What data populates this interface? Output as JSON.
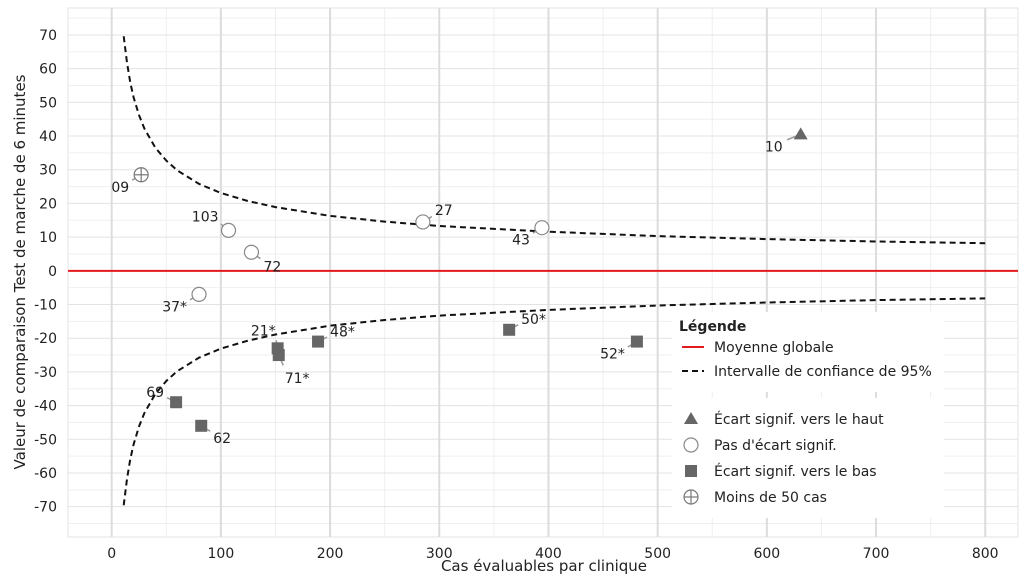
{
  "chart_data": {
    "type": "scatter",
    "xlabel": "Cas évaluables par clinique",
    "ylabel": "Valeur de comparaison Test de marche de 6 minutes",
    "xlim": [
      -40,
      830
    ],
    "ylim": [
      -79,
      78
    ],
    "xticks": [
      0,
      100,
      200,
      300,
      400,
      500,
      600,
      700,
      800
    ],
    "yticks": [
      70,
      60,
      50,
      40,
      30,
      20,
      10,
      0,
      -10,
      -20,
      -30,
      -40,
      -50,
      -60,
      -70
    ],
    "grid": true,
    "reference_line": {
      "y": 0,
      "label": "Moyenne globale",
      "color": "#e41a1c"
    },
    "confidence_band": {
      "label": "Intervalle de confiance de 95%",
      "x": [
        11,
        14,
        17,
        20,
        25,
        30,
        40,
        50,
        60,
        80,
        100,
        125,
        150,
        200,
        250,
        300,
        400,
        500,
        600,
        700,
        800
      ],
      "upper": [
        69.6,
        61.8,
        56.0,
        51.6,
        46.2,
        42.2,
        36.5,
        32.7,
        29.8,
        25.8,
        23.1,
        20.7,
        18.9,
        16.3,
        14.6,
        13.3,
        11.6,
        10.3,
        9.4,
        8.7,
        8.2
      ]
    },
    "series": [
      {
        "name": "Écart signif. vers le haut",
        "marker": "triangle",
        "color": "#666666",
        "points": [
          {
            "label": "10",
            "x": 631,
            "y": 40.5
          }
        ]
      },
      {
        "name": "Pas d'écart signif.",
        "marker": "circle-open",
        "color": "#888888",
        "points": [
          {
            "label": "103",
            "x": 107,
            "y": 12
          },
          {
            "label": "72",
            "x": 128,
            "y": 5.5
          },
          {
            "label": "27",
            "x": 285,
            "y": 14.5
          },
          {
            "label": "43",
            "x": 394,
            "y": 12.8
          },
          {
            "label": "37*",
            "x": 80,
            "y": -7
          }
        ]
      },
      {
        "name": "Écart signif. vers le bas",
        "marker": "square",
        "color": "#666666",
        "points": [
          {
            "label": "21*",
            "x": 152,
            "y": -23
          },
          {
            "label": "71*",
            "x": 153,
            "y": -25
          },
          {
            "label": "48*",
            "x": 189,
            "y": -21
          },
          {
            "label": "50*",
            "x": 364,
            "y": -17.5
          },
          {
            "label": "52*",
            "x": 481,
            "y": -21
          },
          {
            "label": "69",
            "x": 59,
            "y": -39
          },
          {
            "label": "62",
            "x": 82,
            "y": -46
          }
        ]
      },
      {
        "name": "Moins de 50 cas",
        "marker": "circle-plus",
        "color": "#777777",
        "points": [
          {
            "label": "09",
            "x": 27,
            "y": 28.5
          }
        ]
      }
    ],
    "legend": {
      "title": "Légende",
      "placement": "bottom-right",
      "items": [
        "Moyenne globale",
        "Intervalle de confiance de 95%",
        "Écart signif. vers le haut",
        "Pas d'écart signif.",
        "Écart signif. vers le bas",
        "Moins de 50 cas"
      ]
    }
  }
}
